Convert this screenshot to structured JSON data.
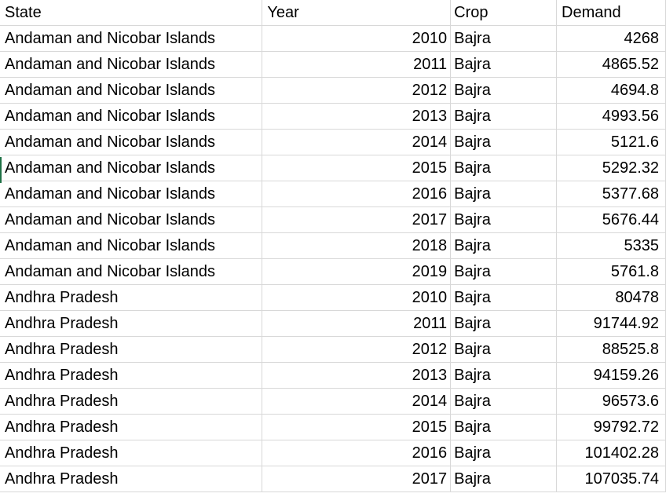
{
  "table": {
    "headers": [
      "State",
      "Year",
      "Crop",
      "Demand"
    ],
    "rows": [
      [
        "Andaman and Nicobar Islands",
        "2010",
        "Bajra",
        "4268"
      ],
      [
        "Andaman and Nicobar Islands",
        "2011",
        "Bajra",
        "4865.52"
      ],
      [
        "Andaman and Nicobar Islands",
        "2012",
        "Bajra",
        "4694.8"
      ],
      [
        "Andaman and Nicobar Islands",
        "2013",
        "Bajra",
        "4993.56"
      ],
      [
        "Andaman and Nicobar Islands",
        "2014",
        "Bajra",
        "5121.6"
      ],
      [
        "Andaman and Nicobar Islands",
        "2015",
        "Bajra",
        "5292.32"
      ],
      [
        "Andaman and Nicobar Islands",
        "2016",
        "Bajra",
        "5377.68"
      ],
      [
        "Andaman and Nicobar Islands",
        "2017",
        "Bajra",
        "5676.44"
      ],
      [
        "Andaman and Nicobar Islands",
        "2018",
        "Bajra",
        "5335"
      ],
      [
        "Andaman and Nicobar Islands",
        "2019",
        "Bajra",
        "5761.8"
      ],
      [
        "Andhra Pradesh",
        "2010",
        "Bajra",
        "80478"
      ],
      [
        "Andhra Pradesh",
        "2011",
        "Bajra",
        "91744.92"
      ],
      [
        "Andhra Pradesh",
        "2012",
        "Bajra",
        "88525.8"
      ],
      [
        "Andhra Pradesh",
        "2013",
        "Bajra",
        "94159.26"
      ],
      [
        "Andhra Pradesh",
        "2014",
        "Bajra",
        "96573.6"
      ],
      [
        "Andhra Pradesh",
        "2015",
        "Bajra",
        "99792.72"
      ],
      [
        "Andhra Pradesh",
        "2016",
        "Bajra",
        "101402.28"
      ],
      [
        "Andhra Pradesh",
        "2017",
        "Bajra",
        "107035.74"
      ]
    ]
  },
  "colors": {
    "gridline": "#d8d8d8",
    "selection": "#1e7145"
  }
}
